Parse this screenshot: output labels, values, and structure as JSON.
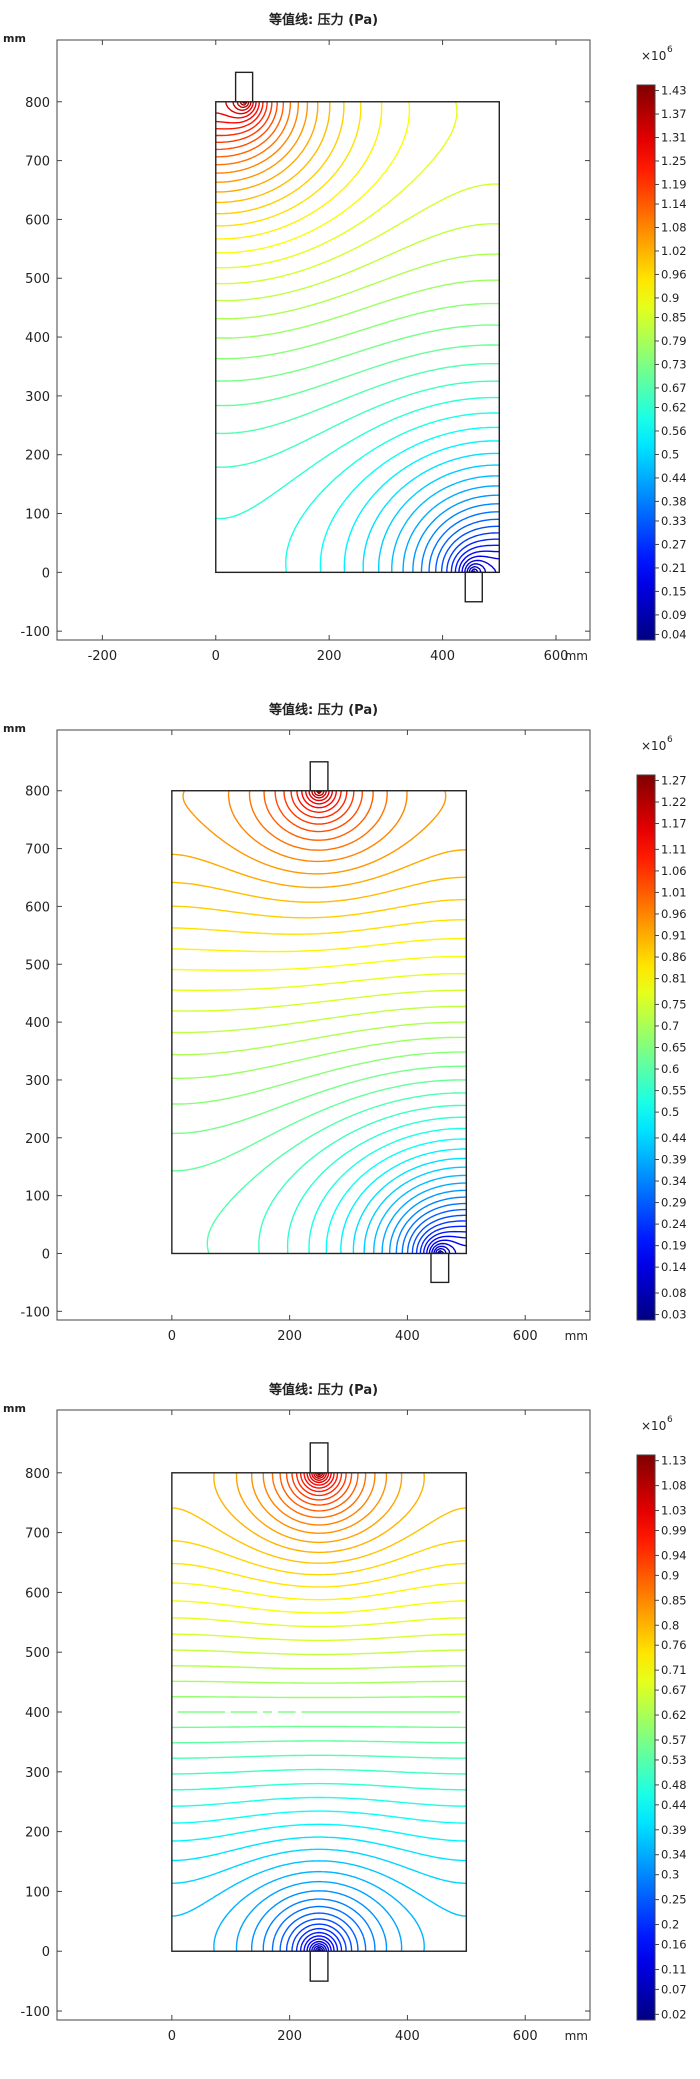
{
  "chart_data": [
    {
      "type": "contour",
      "title": "等值线: 压力 (Pa)",
      "unit_label": "mm",
      "colorbar_exponent": "×10",
      "colorbar_exponent_power": "6",
      "xlim": [
        -280,
        660
      ],
      "ylim": [
        -115,
        905
      ],
      "xticks": [
        -200,
        0,
        200,
        400,
        600
      ],
      "yticks": [
        -100,
        0,
        100,
        200,
        300,
        400,
        500,
        600,
        700,
        800
      ],
      "x_unit_suffix": "mm",
      "domain_rect": {
        "x": [
          0,
          500
        ],
        "y": [
          0,
          800
        ]
      },
      "inlet": {
        "x": 50,
        "y_range": [
          800,
          850
        ]
      },
      "outlet": {
        "x": 455,
        "y_range": [
          -50,
          0
        ]
      },
      "levels": 55,
      "colorbar_ticks": [
        1.43,
        1.37,
        1.31,
        1.25,
        1.19,
        1.14,
        1.08,
        1.02,
        0.96,
        0.9,
        0.85,
        0.79,
        0.73,
        0.67,
        0.62,
        0.56,
        0.5,
        0.44,
        0.38,
        0.33,
        0.27,
        0.21,
        0.15,
        0.09,
        0.04
      ],
      "pressure_range": [
        0.04,
        1.43
      ],
      "grid": false
    },
    {
      "type": "contour",
      "title": "等值线: 压力 (Pa)",
      "unit_label": "mm",
      "colorbar_exponent": "×10",
      "colorbar_exponent_power": "6",
      "xlim": [
        -195,
        710
      ],
      "ylim": [
        -115,
        905
      ],
      "xticks": [
        0,
        200,
        400,
        600
      ],
      "yticks": [
        -100,
        0,
        100,
        200,
        300,
        400,
        500,
        600,
        700,
        800
      ],
      "x_unit_suffix": "mm",
      "domain_rect": {
        "x": [
          0,
          500
        ],
        "y": [
          0,
          800
        ]
      },
      "inlet": {
        "x": 250,
        "y_range": [
          800,
          850
        ]
      },
      "outlet": {
        "x": 455,
        "y_range": [
          -50,
          0
        ]
      },
      "levels": 55,
      "colorbar_ticks": [
        1.27,
        1.22,
        1.17,
        1.11,
        1.06,
        1.01,
        0.96,
        0.91,
        0.86,
        0.81,
        0.75,
        0.7,
        0.65,
        0.6,
        0.55,
        0.5,
        0.44,
        0.39,
        0.34,
        0.29,
        0.24,
        0.19,
        0.14,
        0.08,
        0.03
      ],
      "pressure_range": [
        0.03,
        1.27
      ],
      "grid": false
    },
    {
      "type": "contour",
      "title": "等值线: 压力 (Pa)",
      "unit_label": "mm",
      "colorbar_exponent": "×10",
      "colorbar_exponent_power": "6",
      "xlim": [
        -195,
        710
      ],
      "ylim": [
        -115,
        905
      ],
      "xticks": [
        0,
        200,
        400,
        600
      ],
      "yticks": [
        -100,
        0,
        100,
        200,
        300,
        400,
        500,
        600,
        700,
        800
      ],
      "x_unit_suffix": "mm",
      "domain_rect": {
        "x": [
          0,
          500
        ],
        "y": [
          0,
          800
        ]
      },
      "inlet": {
        "x": 250,
        "y_range": [
          800,
          850
        ]
      },
      "outlet": {
        "x": 250,
        "y_range": [
          -50,
          0
        ]
      },
      "levels": 60,
      "colorbar_ticks": [
        1.13,
        1.08,
        1.03,
        0.99,
        0.94,
        0.9,
        0.85,
        0.8,
        0.76,
        0.71,
        0.67,
        0.62,
        0.57,
        0.53,
        0.48,
        0.44,
        0.39,
        0.34,
        0.3,
        0.25,
        0.2,
        0.16,
        0.11,
        0.07,
        0.02
      ],
      "pressure_range": [
        0.02,
        1.13
      ],
      "grid": false
    }
  ]
}
